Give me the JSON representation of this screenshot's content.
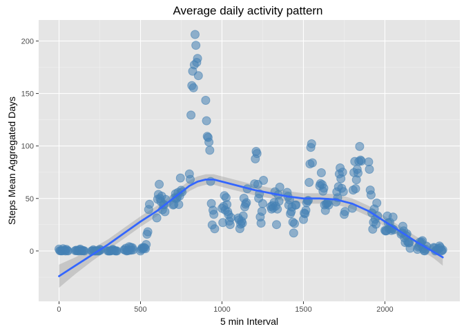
{
  "chart_data": {
    "type": "scatter",
    "title": "Average daily activity pattern",
    "xlabel": "5 min Interval",
    "ylabel": "Steps Mean Aggregated Days",
    "xlim": [
      -125,
      2460
    ],
    "ylim": [
      -48,
      220
    ],
    "x_ticks": [
      0,
      500,
      1000,
      1500,
      2000
    ],
    "y_ticks": [
      0,
      50,
      100,
      150,
      200
    ],
    "x_tick_labels": [
      "0",
      "500",
      "1000",
      "1500",
      "2000"
    ],
    "y_tick_labels": [
      "0",
      "50",
      "100",
      "150",
      "200"
    ],
    "grid": true,
    "legend": "none",
    "colors": {
      "panel_background": "#e5e5e5",
      "grid_major": "#ffffff",
      "grid_minor": "#f2f2f2",
      "point_fill": "#4682b4",
      "point_stroke": "#4682b4",
      "smooth_line": "#3366ff",
      "confidence_band": "#999999"
    },
    "points": [
      [
        0,
        1.7
      ],
      [
        5,
        0.3
      ],
      [
        10,
        0.1
      ],
      [
        15,
        0.2
      ],
      [
        20,
        0.1
      ],
      [
        25,
        2.1
      ],
      [
        30,
        0.5
      ],
      [
        35,
        0.9
      ],
      [
        40,
        0
      ],
      [
        45,
        1.5
      ],
      [
        50,
        0.3
      ],
      [
        55,
        0.1
      ],
      [
        100,
        0.3
      ],
      [
        105,
        0.7
      ],
      [
        110,
        0.2
      ],
      [
        115,
        0.3
      ],
      [
        120,
        0
      ],
      [
        125,
        1.1
      ],
      [
        130,
        1.8
      ],
      [
        135,
        0.2
      ],
      [
        140,
        0.2
      ],
      [
        145,
        0.4
      ],
      [
        150,
        0.3
      ],
      [
        155,
        0
      ],
      [
        200,
        0
      ],
      [
        205,
        0
      ],
      [
        210,
        1.1
      ],
      [
        215,
        0
      ],
      [
        220,
        0
      ],
      [
        225,
        0.1
      ],
      [
        230,
        0
      ],
      [
        235,
        0.2
      ],
      [
        240,
        0
      ],
      [
        245,
        0
      ],
      [
        250,
        1.5
      ],
      [
        255,
        0.9
      ],
      [
        300,
        0
      ],
      [
        305,
        0
      ],
      [
        310,
        0
      ],
      [
        315,
        0
      ],
      [
        320,
        0.2
      ],
      [
        325,
        0.6
      ],
      [
        330,
        1.6
      ],
      [
        335,
        0.6
      ],
      [
        340,
        0.5
      ],
      [
        345,
        0.1
      ],
      [
        350,
        0
      ],
      [
        355,
        0
      ],
      [
        400,
        1.2
      ],
      [
        405,
        0.9
      ],
      [
        410,
        2.6
      ],
      [
        415,
        0
      ],
      [
        420,
        0.3
      ],
      [
        425,
        0.4
      ],
      [
        430,
        4.1
      ],
      [
        435,
        0.7
      ],
      [
        440,
        3.5
      ],
      [
        445,
        0.8
      ],
      [
        450,
        3.1
      ],
      [
        455,
        1.1
      ],
      [
        500,
        0
      ],
      [
        505,
        1.6
      ],
      [
        510,
        3
      ],
      [
        515,
        2.2
      ],
      [
        520,
        3.3
      ],
      [
        525,
        3
      ],
      [
        530,
        2.1
      ],
      [
        535,
        6.1
      ],
      [
        540,
        16
      ],
      [
        545,
        18.3
      ],
      [
        550,
        39.5
      ],
      [
        555,
        44.5
      ],
      [
        600,
        31.5
      ],
      [
        605,
        49.3
      ],
      [
        610,
        53.8
      ],
      [
        615,
        63.5
      ],
      [
        620,
        50
      ],
      [
        625,
        47.1
      ],
      [
        630,
        52.2
      ],
      [
        635,
        39.3
      ],
      [
        640,
        44
      ],
      [
        645,
        44.2
      ],
      [
        650,
        37.4
      ],
      [
        655,
        49
      ],
      [
        700,
        43.8
      ],
      [
        705,
        44.4
      ],
      [
        710,
        50.5
      ],
      [
        715,
        54.5
      ],
      [
        720,
        49.9
      ],
      [
        725,
        51
      ],
      [
        730,
        55.7
      ],
      [
        735,
        44.3
      ],
      [
        740,
        52.3
      ],
      [
        745,
        69.5
      ],
      [
        750,
        57.8
      ],
      [
        755,
        56.2
      ],
      [
        800,
        73.4
      ],
      [
        805,
        68.2
      ],
      [
        810,
        129.4
      ],
      [
        815,
        157.5
      ],
      [
        820,
        171.2
      ],
      [
        825,
        155.4
      ],
      [
        830,
        177.3
      ],
      [
        835,
        206.2
      ],
      [
        840,
        195.9
      ],
      [
        845,
        179.6
      ],
      [
        850,
        183.4
      ],
      [
        855,
        167
      ],
      [
        900,
        143.5
      ],
      [
        905,
        124
      ],
      [
        910,
        109.1
      ],
      [
        915,
        108.1
      ],
      [
        920,
        103.7
      ],
      [
        925,
        95.9
      ],
      [
        930,
        66.2
      ],
      [
        935,
        45.2
      ],
      [
        940,
        24.8
      ],
      [
        945,
        38.8
      ],
      [
        950,
        34.9
      ],
      [
        955,
        21.1
      ],
      [
        1000,
        40.6
      ],
      [
        1005,
        27
      ],
      [
        1010,
        42.4
      ],
      [
        1015,
        52.7
      ],
      [
        1020,
        38.9
      ],
      [
        1025,
        50.8
      ],
      [
        1030,
        44.3
      ],
      [
        1035,
        37.4
      ],
      [
        1040,
        34.7
      ],
      [
        1045,
        28.3
      ],
      [
        1050,
        25.1
      ],
      [
        1055,
        31.9
      ],
      [
        1100,
        31.4
      ],
      [
        1105,
        29.7
      ],
      [
        1110,
        21.3
      ],
      [
        1115,
        25.5
      ],
      [
        1120,
        28.4
      ],
      [
        1125,
        26.5
      ],
      [
        1130,
        33.4
      ],
      [
        1135,
        50.2
      ],
      [
        1140,
        42
      ],
      [
        1145,
        44.6
      ],
      [
        1150,
        46
      ],
      [
        1155,
        59.2
      ],
      [
        1200,
        63.9
      ],
      [
        1205,
        87.7
      ],
      [
        1210,
        94.8
      ],
      [
        1215,
        92.8
      ],
      [
        1220,
        63.4
      ],
      [
        1225,
        50.2
      ],
      [
        1230,
        54.5
      ],
      [
        1235,
        32.4
      ],
      [
        1240,
        26.5
      ],
      [
        1245,
        37.7
      ],
      [
        1250,
        45.1
      ],
      [
        1255,
        67.3
      ],
      [
        1300,
        42.3
      ],
      [
        1305,
        39.9
      ],
      [
        1310,
        43.3
      ],
      [
        1315,
        40.98
      ],
      [
        1320,
        46.2
      ],
      [
        1325,
        56.4
      ],
      [
        1330,
        42.8
      ],
      [
        1335,
        25.1
      ],
      [
        1340,
        39.9
      ],
      [
        1345,
        53.5
      ],
      [
        1350,
        47.3
      ],
      [
        1355,
        60.8
      ],
      [
        1400,
        55.8
      ],
      [
        1405,
        51.96
      ],
      [
        1410,
        43.6
      ],
      [
        1415,
        48.7
      ],
      [
        1420,
        35.5
      ],
      [
        1425,
        37.5
      ],
      [
        1430,
        41.8
      ],
      [
        1435,
        27.5
      ],
      [
        1440,
        17.1
      ],
      [
        1445,
        26.1
      ],
      [
        1450,
        43.6
      ],
      [
        1455,
        43.8
      ],
      [
        1500,
        30
      ],
      [
        1505,
        36.1
      ],
      [
        1510,
        35.5
      ],
      [
        1515,
        38.8
      ],
      [
        1520,
        45.96
      ],
      [
        1525,
        47.8
      ],
      [
        1530,
        48.1
      ],
      [
        1535,
        65.3
      ],
      [
        1540,
        82.9
      ],
      [
        1545,
        98.7
      ],
      [
        1550,
        102.1
      ],
      [
        1555,
        83.96
      ],
      [
        1600,
        62.1
      ],
      [
        1605,
        64.1
      ],
      [
        1610,
        74.5
      ],
      [
        1615,
        63.2
      ],
      [
        1620,
        56.9
      ],
      [
        1625,
        59.8
      ],
      [
        1630,
        43.9
      ],
      [
        1635,
        38.6
      ],
      [
        1640,
        44.7
      ],
      [
        1645,
        45.5
      ],
      [
        1650,
        46.2
      ],
      [
        1655,
        43.7
      ],
      [
        1700,
        46.6
      ],
      [
        1705,
        56.3
      ],
      [
        1710,
        50.7
      ],
      [
        1715,
        61.2
      ],
      [
        1720,
        73.4
      ],
      [
        1725,
        79.1
      ],
      [
        1730,
        68.9
      ],
      [
        1735,
        59.7
      ],
      [
        1740,
        75.1
      ],
      [
        1745,
        56.5
      ],
      [
        1750,
        34.8
      ],
      [
        1755,
        37.5
      ],
      [
        1800,
        40.7
      ],
      [
        1805,
        58
      ],
      [
        1810,
        74.7
      ],
      [
        1815,
        85.3
      ],
      [
        1820,
        59.3
      ],
      [
        1825,
        67.8
      ],
      [
        1830,
        77.7
      ],
      [
        1835,
        74.2
      ],
      [
        1840,
        85.3
      ],
      [
        1845,
        99.5
      ],
      [
        1850,
        86.6
      ],
      [
        1855,
        85.6
      ],
      [
        1900,
        84.9
      ],
      [
        1905,
        77.8
      ],
      [
        1910,
        58
      ],
      [
        1915,
        53.4
      ],
      [
        1920,
        36.3
      ],
      [
        1925,
        20.7
      ],
      [
        1930,
        27.4
      ],
      [
        1935,
        40
      ],
      [
        1940,
        30.2
      ],
      [
        1945,
        25.5
      ],
      [
        1950,
        45.7
      ],
      [
        1955,
        33.5
      ],
      [
        2000,
        19.6
      ],
      [
        2005,
        19
      ],
      [
        2010,
        19.3
      ],
      [
        2015,
        33.3
      ],
      [
        2020,
        26.8
      ],
      [
        2025,
        21.2
      ],
      [
        2030,
        27.3
      ],
      [
        2035,
        21.3
      ],
      [
        2040,
        19.5
      ],
      [
        2045,
        21.3
      ],
      [
        2050,
        32.3
      ],
      [
        2055,
        20.2
      ],
      [
        2100,
        15.9
      ],
      [
        2105,
        17.2
      ],
      [
        2110,
        23.5
      ],
      [
        2115,
        19.2
      ],
      [
        2120,
        12.5
      ],
      [
        2125,
        8
      ],
      [
        2130,
        14.7
      ],
      [
        2135,
        16.3
      ],
      [
        2140,
        8.7
      ],
      [
        2145,
        7.8
      ],
      [
        2150,
        8.1
      ],
      [
        2155,
        2.6
      ],
      [
        2200,
        1.5
      ],
      [
        2205,
        3.7
      ],
      [
        2210,
        4.8
      ],
      [
        2215,
        8.5
      ],
      [
        2220,
        7.1
      ],
      [
        2225,
        8.7
      ],
      [
        2230,
        9.8
      ],
      [
        2235,
        2.2
      ],
      [
        2240,
        0.3
      ],
      [
        2245,
        0.1
      ],
      [
        2250,
        1.6
      ],
      [
        2255,
        4.6
      ],
      [
        2300,
        3.3
      ],
      [
        2305,
        2.8
      ],
      [
        2310,
        0
      ],
      [
        2315,
        0.8
      ],
      [
        2320,
        1
      ],
      [
        2325,
        1.6
      ],
      [
        2330,
        2.6
      ],
      [
        2335,
        4.7
      ],
      [
        2340,
        3.3
      ],
      [
        2345,
        0.6
      ],
      [
        2350,
        0.2
      ],
      [
        2355,
        1.1
      ]
    ],
    "smooth_fit": [
      [
        0,
        -24
      ],
      [
        100,
        -14
      ],
      [
        200,
        -4
      ],
      [
        300,
        6
      ],
      [
        400,
        17
      ],
      [
        500,
        28
      ],
      [
        600,
        38
      ],
      [
        700,
        50
      ],
      [
        800,
        62
      ],
      [
        850,
        66
      ],
      [
        900,
        68
      ],
      [
        950,
        68
      ],
      [
        1000,
        66
      ],
      [
        1100,
        62
      ],
      [
        1200,
        58
      ],
      [
        1300,
        55
      ],
      [
        1400,
        52
      ],
      [
        1500,
        50
      ],
      [
        1600,
        50
      ],
      [
        1700,
        49
      ],
      [
        1800,
        45
      ],
      [
        1900,
        38
      ],
      [
        2000,
        28
      ],
      [
        2100,
        18
      ],
      [
        2200,
        8
      ],
      [
        2300,
        -1
      ],
      [
        2355,
        -6
      ]
    ],
    "smooth_se": [
      [
        0,
        11
      ],
      [
        100,
        8
      ],
      [
        200,
        6
      ],
      [
        300,
        5
      ],
      [
        400,
        5
      ],
      [
        500,
        5
      ],
      [
        600,
        5
      ],
      [
        700,
        5
      ],
      [
        800,
        5
      ],
      [
        900,
        5
      ],
      [
        1000,
        5
      ],
      [
        1100,
        5
      ],
      [
        1200,
        5
      ],
      [
        1300,
        5
      ],
      [
        1400,
        5
      ],
      [
        1500,
        5
      ],
      [
        1600,
        5
      ],
      [
        1700,
        5
      ],
      [
        1800,
        5
      ],
      [
        1900,
        5
      ],
      [
        2000,
        5
      ],
      [
        2100,
        5
      ],
      [
        2200,
        5
      ],
      [
        2300,
        6
      ],
      [
        2355,
        8
      ]
    ]
  }
}
